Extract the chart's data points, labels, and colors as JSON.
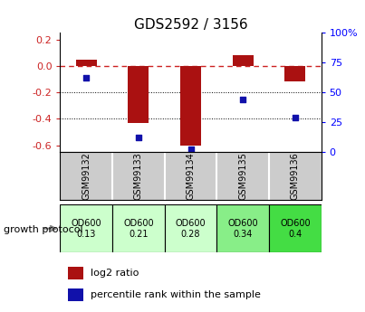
{
  "title": "GDS2592 / 3156",
  "samples": [
    "GSM99132",
    "GSM99133",
    "GSM99134",
    "GSM99135",
    "GSM99136"
  ],
  "log2_ratio": [
    0.05,
    -0.43,
    -0.6,
    0.08,
    -0.12
  ],
  "percentile_rank_pct": [
    62,
    12,
    2,
    44,
    29
  ],
  "ylim_left": [
    -0.65,
    0.25
  ],
  "ylim_right": [
    0,
    100
  ],
  "yticks_left": [
    0.2,
    0.0,
    -0.2,
    -0.4,
    -0.6
  ],
  "yticks_right": [
    100,
    75,
    50,
    25,
    0
  ],
  "bar_color": "#aa1111",
  "dot_color": "#1111aa",
  "dashed_color": "#cc2222",
  "protocol_label": "growth protocol",
  "protocol_values": [
    "OD600\n0.13",
    "OD600\n0.21",
    "OD600\n0.28",
    "OD600\n0.34",
    "OD600\n0.4"
  ],
  "protocol_colors": [
    "#ccffcc",
    "#ccffcc",
    "#ccffcc",
    "#88ee88",
    "#44dd44"
  ],
  "legend_red": "log2 ratio",
  "legend_blue": "percentile rank within the sample",
  "bar_width": 0.4
}
